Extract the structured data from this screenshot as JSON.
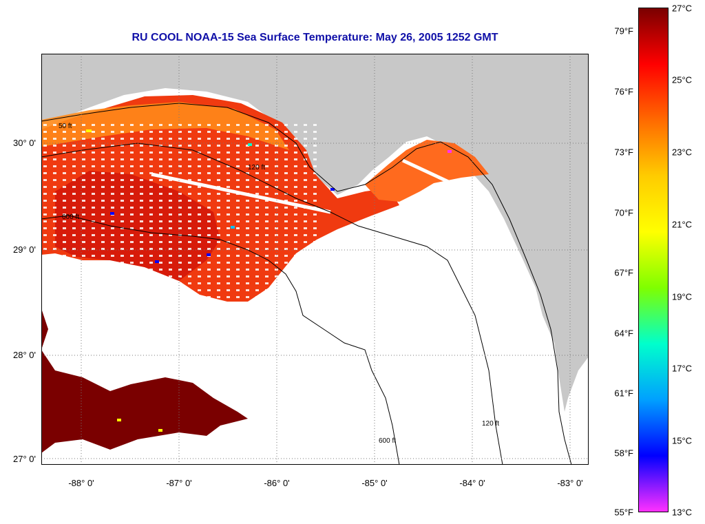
{
  "title": "RU COOL  NOAA-15  Sea Surface Temperature:  May 26, 2005 1252 GMT",
  "map": {
    "latitude_labels": [
      "30° 0'",
      "29° 0'",
      "28° 0'",
      "27° 0'"
    ],
    "longitude_labels": [
      "-88° 0'",
      "-87° 0'",
      "-86° 0'",
      "-85° 0'",
      "-84° 0'",
      "-83° 0'"
    ],
    "contour_labels": [
      "50 ft",
      "120 ft",
      "600 ft"
    ],
    "colors": {
      "land": "#c8c8c8",
      "no_data": "#ffffff",
      "grid": "#777777"
    }
  },
  "colorbar": {
    "fahrenheit_ticks": [
      "79°F",
      "76°F",
      "73°F",
      "70°F",
      "67°F",
      "64°F",
      "61°F",
      "58°F",
      "55°F"
    ],
    "celsius_ticks": [
      "27°C",
      "25°C",
      "23°C",
      "21°C",
      "19°C",
      "17°C",
      "15°C",
      "13°C"
    ],
    "stops": [
      "#7a0000",
      "#ff0000",
      "#ff6a00",
      "#ffcc00",
      "#ffff00",
      "#7fff00",
      "#00ffcc",
      "#00a0ff",
      "#0000ff",
      "#ff30ff"
    ]
  }
}
